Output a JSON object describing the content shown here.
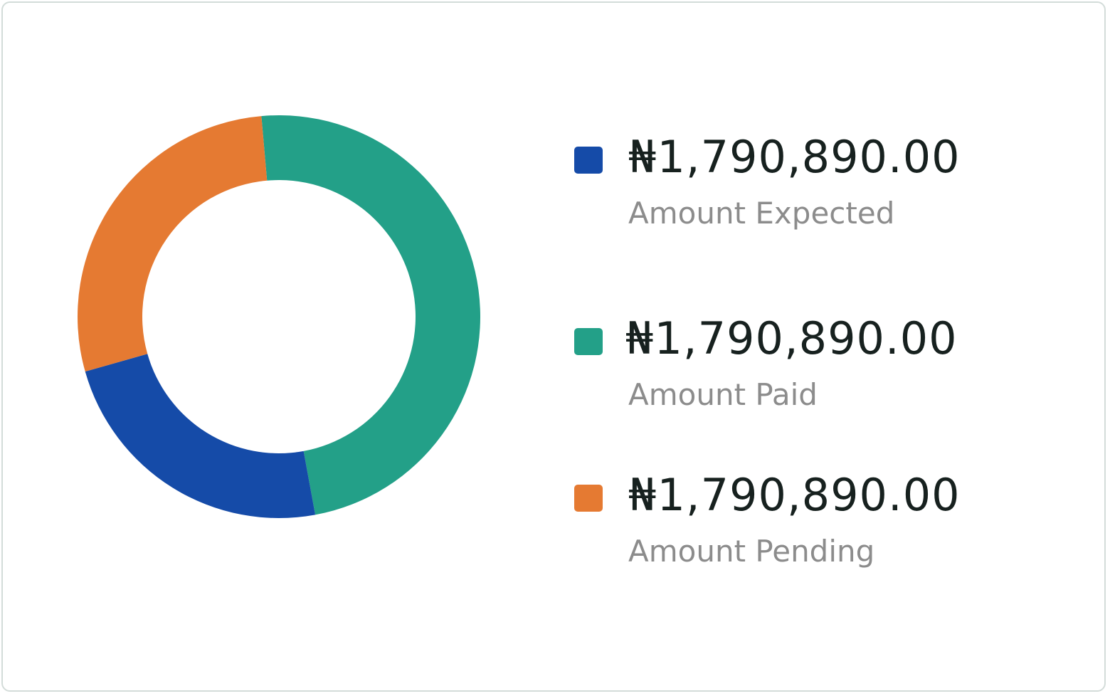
{
  "chart_data": {
    "type": "pie",
    "variant": "donut",
    "start_angle_deg": 95,
    "slices": [
      {
        "name": "Amount Paid",
        "value": 48.5,
        "color": "#23a088"
      },
      {
        "name": "Amount Expected",
        "value": 23.5,
        "color": "#154ba8"
      },
      {
        "name": "Amount Pending",
        "value": 28.0,
        "color": "#e57a32"
      }
    ]
  },
  "legend": [
    {
      "amount": "₦1,790,890.00",
      "label": "Amount Expected",
      "color": "#154ba8"
    },
    {
      "amount": "₦1,790,890.00",
      "label": "Amount Paid",
      "color": "#23a088"
    },
    {
      "amount": "₦1,790,890.00",
      "label": "Amount Pending",
      "color": "#e57a32"
    }
  ]
}
